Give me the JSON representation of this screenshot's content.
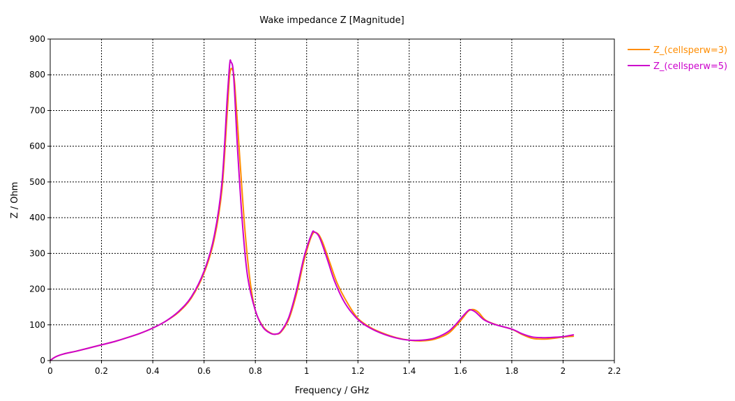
{
  "chart_data": {
    "type": "line",
    "title": "Wake impedance Z [Magnitude]",
    "xlabel": "Frequency / GHz",
    "ylabel": "Z / Ohm",
    "xlim": [
      0,
      2.2
    ],
    "ylim": [
      0,
      900
    ],
    "x_ticks": [
      0,
      0.2,
      0.4,
      0.6,
      0.8,
      1,
      1.2,
      1.4,
      1.6,
      1.8,
      2,
      2.2
    ],
    "x_tick_labels": [
      "0",
      "0.2",
      "0.4",
      "0.6",
      "0.8",
      "1",
      "1.2",
      "1.4",
      "1.6",
      "1.8",
      "2",
      "2.2"
    ],
    "y_ticks": [
      0,
      100,
      200,
      300,
      400,
      500,
      600,
      700,
      800,
      900
    ],
    "y_tick_labels": [
      "0",
      "100",
      "200",
      "300",
      "400",
      "500",
      "600",
      "700",
      "800",
      "900"
    ],
    "grid": true,
    "legend_position": "outside-top-right",
    "series": [
      {
        "name": "Z_(cellsperw=3)",
        "color": "#ff8c00",
        "points": [
          [
            0,
            0
          ],
          [
            0.02,
            10
          ],
          [
            0.05,
            18
          ],
          [
            0.1,
            26
          ],
          [
            0.15,
            35
          ],
          [
            0.2,
            44
          ],
          [
            0.25,
            53
          ],
          [
            0.3,
            64
          ],
          [
            0.35,
            76
          ],
          [
            0.4,
            91
          ],
          [
            0.45,
            110
          ],
          [
            0.5,
            135
          ],
          [
            0.55,
            175
          ],
          [
            0.6,
            245
          ],
          [
            0.64,
            340
          ],
          [
            0.67,
            480
          ],
          [
            0.69,
            690
          ],
          [
            0.7,
            800
          ],
          [
            0.71,
            815
          ],
          [
            0.72,
            770
          ],
          [
            0.74,
            560
          ],
          [
            0.76,
            360
          ],
          [
            0.78,
            220
          ],
          [
            0.8,
            140
          ],
          [
            0.83,
            95
          ],
          [
            0.86,
            77
          ],
          [
            0.88,
            74
          ],
          [
            0.9,
            80
          ],
          [
            0.93,
            115
          ],
          [
            0.96,
            185
          ],
          [
            0.99,
            280
          ],
          [
            1.02,
            350
          ],
          [
            1.04,
            357
          ],
          [
            1.06,
            335
          ],
          [
            1.09,
            275
          ],
          [
            1.12,
            215
          ],
          [
            1.16,
            160
          ],
          [
            1.2,
            118
          ],
          [
            1.25,
            92
          ],
          [
            1.3,
            76
          ],
          [
            1.35,
            64
          ],
          [
            1.4,
            57
          ],
          [
            1.45,
            55
          ],
          [
            1.5,
            60
          ],
          [
            1.55,
            75
          ],
          [
            1.58,
            95
          ],
          [
            1.61,
            120
          ],
          [
            1.63,
            138
          ],
          [
            1.65,
            143
          ],
          [
            1.67,
            135
          ],
          [
            1.7,
            112
          ],
          [
            1.75,
            98
          ],
          [
            1.8,
            88
          ],
          [
            1.84,
            73
          ],
          [
            1.88,
            62
          ],
          [
            1.92,
            60
          ],
          [
            1.96,
            62
          ],
          [
            2,
            66
          ],
          [
            2.04,
            68
          ]
        ]
      },
      {
        "name": "Z_(cellsperw=5)",
        "color": "#cc00cc",
        "points": [
          [
            0,
            0
          ],
          [
            0.02,
            10
          ],
          [
            0.05,
            18
          ],
          [
            0.1,
            26
          ],
          [
            0.15,
            35
          ],
          [
            0.2,
            44
          ],
          [
            0.25,
            53
          ],
          [
            0.3,
            64
          ],
          [
            0.35,
            76
          ],
          [
            0.4,
            91
          ],
          [
            0.45,
            110
          ],
          [
            0.5,
            137
          ],
          [
            0.55,
            178
          ],
          [
            0.6,
            250
          ],
          [
            0.64,
            350
          ],
          [
            0.67,
            500
          ],
          [
            0.69,
            730
          ],
          [
            0.7,
            830
          ],
          [
            0.705,
            836
          ],
          [
            0.715,
            800
          ],
          [
            0.73,
            600
          ],
          [
            0.75,
            380
          ],
          [
            0.77,
            235
          ],
          [
            0.8,
            140
          ],
          [
            0.83,
            93
          ],
          [
            0.86,
            76
          ],
          [
            0.88,
            74
          ],
          [
            0.9,
            82
          ],
          [
            0.93,
            120
          ],
          [
            0.96,
            195
          ],
          [
            0.99,
            290
          ],
          [
            1.02,
            355
          ],
          [
            1.03,
            360
          ],
          [
            1.05,
            345
          ],
          [
            1.08,
            285
          ],
          [
            1.11,
            220
          ],
          [
            1.15,
            160
          ],
          [
            1.2,
            115
          ],
          [
            1.25,
            90
          ],
          [
            1.3,
            74
          ],
          [
            1.35,
            63
          ],
          [
            1.4,
            57
          ],
          [
            1.45,
            57
          ],
          [
            1.5,
            63
          ],
          [
            1.55,
            80
          ],
          [
            1.58,
            100
          ],
          [
            1.61,
            125
          ],
          [
            1.63,
            140
          ],
          [
            1.64,
            142
          ],
          [
            1.66,
            135
          ],
          [
            1.69,
            115
          ],
          [
            1.73,
            102
          ],
          [
            1.8,
            88
          ],
          [
            1.84,
            75
          ],
          [
            1.88,
            66
          ],
          [
            1.92,
            64
          ],
          [
            1.96,
            65
          ],
          [
            2,
            67
          ],
          [
            2.04,
            72
          ]
        ]
      }
    ]
  }
}
